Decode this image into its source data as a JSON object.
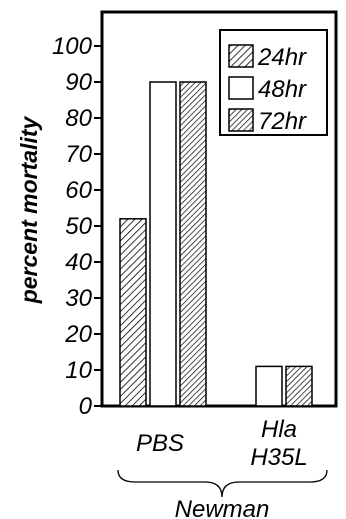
{
  "chart_data": {
    "type": "bar",
    "title": "",
    "xlabel": "",
    "ylabel": "percent mortality",
    "ylim": [
      0,
      100
    ],
    "yticks": [
      0,
      10,
      20,
      30,
      40,
      50,
      60,
      70,
      80,
      90,
      100
    ],
    "categories": [
      {
        "lines": [
          "PBS"
        ]
      },
      {
        "lines": [
          "Hla",
          "H35L"
        ]
      }
    ],
    "series": [
      {
        "name": "24hr",
        "values": [
          52,
          null
        ],
        "fill": "hatch-fine"
      },
      {
        "name": "48hr",
        "values": [
          90,
          11
        ],
        "fill": "open"
      },
      {
        "name": "72hr",
        "values": [
          90,
          11
        ],
        "fill": "hatch-dense"
      }
    ],
    "group_label": "Newman",
    "legend_position": "top-right",
    "grid": false,
    "colors": {
      "ink": "#000000",
      "background": "#ffffff"
    }
  }
}
